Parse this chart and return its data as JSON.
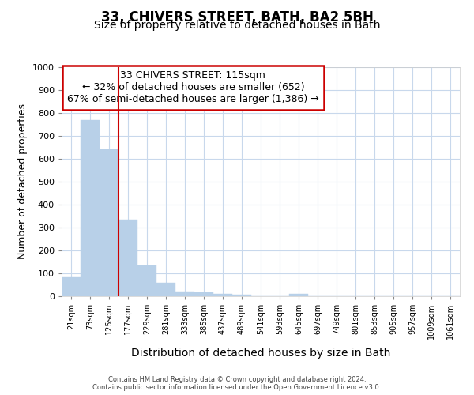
{
  "title": "33, CHIVERS STREET, BATH, BA2 5BH",
  "subtitle": "Size of property relative to detached houses in Bath",
  "xlabel": "Distribution of detached houses by size in Bath",
  "ylabel": "Number of detached properties",
  "categories": [
    "21sqm",
    "73sqm",
    "125sqm",
    "177sqm",
    "229sqm",
    "281sqm",
    "333sqm",
    "385sqm",
    "437sqm",
    "489sqm",
    "541sqm",
    "593sqm",
    "645sqm",
    "697sqm",
    "749sqm",
    "801sqm",
    "853sqm",
    "905sqm",
    "957sqm",
    "1009sqm",
    "1061sqm"
  ],
  "values": [
    83,
    770,
    640,
    333,
    133,
    60,
    22,
    17,
    10,
    7,
    0,
    0,
    10,
    0,
    0,
    0,
    0,
    0,
    0,
    0,
    0
  ],
  "bar_color": "#b8d0e8",
  "bar_edge_color": "#b8d0e8",
  "grid_color": "#c8d8ec",
  "background_color": "#ffffff",
  "vline_color": "#cc0000",
  "vline_pos": 2.5,
  "annotation_text": "33 CHIVERS STREET: 115sqm\n← 32% of detached houses are smaller (652)\n67% of semi-detached houses are larger (1,386) →",
  "annotation_box_edgecolor": "#cc0000",
  "annotation_fill": "#ffffff",
  "ylim": [
    0,
    1000
  ],
  "yticks": [
    0,
    100,
    200,
    300,
    400,
    500,
    600,
    700,
    800,
    900,
    1000
  ],
  "footer_line1": "Contains HM Land Registry data © Crown copyright and database right 2024.",
  "footer_line2": "Contains public sector information licensed under the Open Government Licence v3.0.",
  "title_fontsize": 12,
  "subtitle_fontsize": 10,
  "ylabel_fontsize": 9,
  "xlabel_fontsize": 10,
  "tick_fontsize": 8,
  "ann_fontsize": 9
}
